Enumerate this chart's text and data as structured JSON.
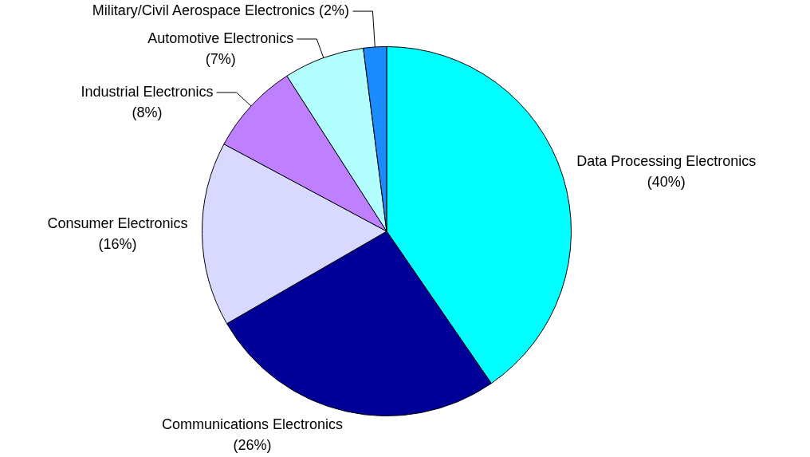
{
  "chart_data": {
    "type": "pie",
    "categories": [
      "Data Processing Electronics",
      "Communications Electronics",
      "Consumer Electronics",
      "Industrial Electronics",
      "Automotive Electronics",
      "Military/Civil Aerospace Electronics"
    ],
    "values": [
      40,
      26,
      16,
      8,
      7,
      2
    ],
    "value_labels": [
      "(40%)",
      "(26%)",
      "(16%)",
      "(8%)",
      "(7%)",
      "(2%)"
    ],
    "colors": [
      "#00ffff",
      "#000099",
      "#d9d9ff",
      "#bf80ff",
      "#b3ffff",
      "#1a8cff"
    ],
    "legend": false
  }
}
